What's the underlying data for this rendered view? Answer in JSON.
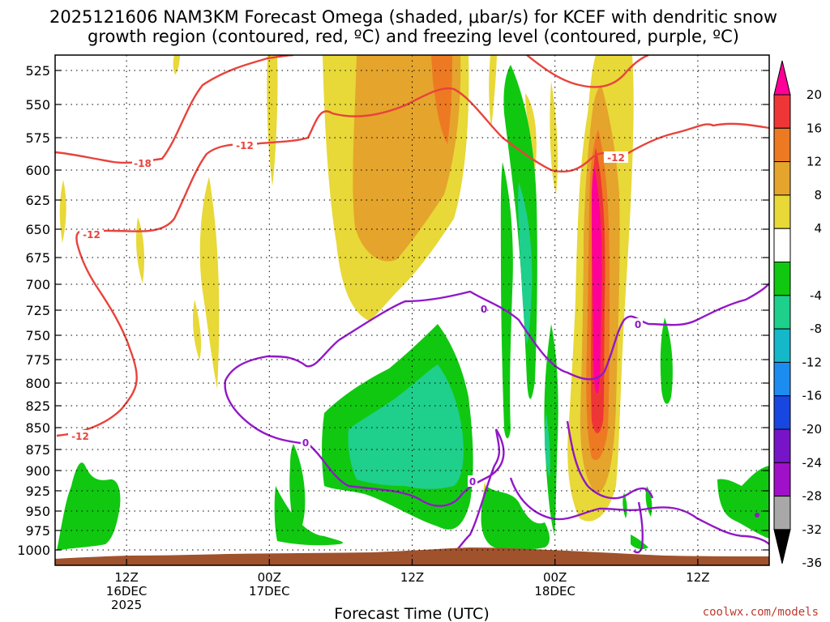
{
  "title_line1": "2025121606 NAM3KM Forecast Omega (shaded, μbar/s) for KCEF with dendritic snow",
  "title_line2": "growth region (contoured, red, ºC) and freezing level (contoured, purple, ºC)",
  "chart_data": {
    "type": "heatmap",
    "title": "2025121606 NAM3KM Forecast Omega (shaded, μbar/s) for KCEF with dendritic snow growth region (contoured, red, ºC) and freezing level (contoured, purple, ºC)",
    "xlabel": "Forecast Time (UTC)",
    "ylabel": "",
    "y_ticks": [
      "525",
      "550",
      "575",
      "600",
      "625",
      "650",
      "675",
      "700",
      "725",
      "750",
      "775",
      "800",
      "825",
      "850",
      "875",
      "900",
      "925",
      "950",
      "975",
      "1000"
    ],
    "ylim": [
      1010,
      520
    ],
    "xlim_hours": [
      6,
      66
    ],
    "x_ticks": [
      {
        "hour": 12,
        "lines": [
          "12Z",
          "16DEC",
          "2025"
        ]
      },
      {
        "hour": 24,
        "lines": [
          "00Z",
          "17DEC"
        ]
      },
      {
        "hour": 36,
        "lines": [
          "12Z"
        ]
      },
      {
        "hour": 48,
        "lines": [
          "00Z",
          "18DEC"
        ]
      },
      {
        "hour": 60,
        "lines": [
          "12Z"
        ]
      }
    ],
    "colorbar": {
      "labels": [
        "20",
        "16",
        "12",
        "8",
        "4",
        "-4",
        "-8",
        "-12",
        "-16",
        "-20",
        "-24",
        "-28",
        "-32",
        "-36"
      ],
      "bands": [
        {
          "range": "≥20",
          "color": "#ff0099"
        },
        {
          "range": "16–20",
          "color": "#ef3636"
        },
        {
          "range": "12–16",
          "color": "#ed7a22"
        },
        {
          "range": "8–12",
          "color": "#e5a42c"
        },
        {
          "range": "4–8",
          "color": "#e8d838"
        },
        {
          "range": "-4–4",
          "color": "#ffffff"
        },
        {
          "range": "-8–-4",
          "color": "#10c810"
        },
        {
          "range": "-12–-8",
          "color": "#1fcf8c"
        },
        {
          "range": "-16–-12",
          "color": "#14b8c8"
        },
        {
          "range": "-20–-16",
          "color": "#1c8cf0"
        },
        {
          "range": "-24–-20",
          "color": "#1846e0"
        },
        {
          "range": "-28–-24",
          "color": "#7814c8"
        },
        {
          "range": "-32–-28",
          "color": "#a010c8"
        },
        {
          "range": "-36–-32",
          "color": "#a8a8a8"
        },
        {
          "range": "<-36",
          "color": "#000000"
        }
      ]
    },
    "contours": {
      "dendritic_red": [
        {
          "label": "-18"
        },
        {
          "label": "-12"
        },
        {
          "label": "-12"
        },
        {
          "label": "-12"
        },
        {
          "label": "-12"
        }
      ],
      "freezing_purple": [
        {
          "label": "0"
        },
        {
          "label": "0"
        },
        {
          "label": "0"
        },
        {
          "label": "0"
        }
      ]
    }
  },
  "credit": "coolwx.com/models"
}
